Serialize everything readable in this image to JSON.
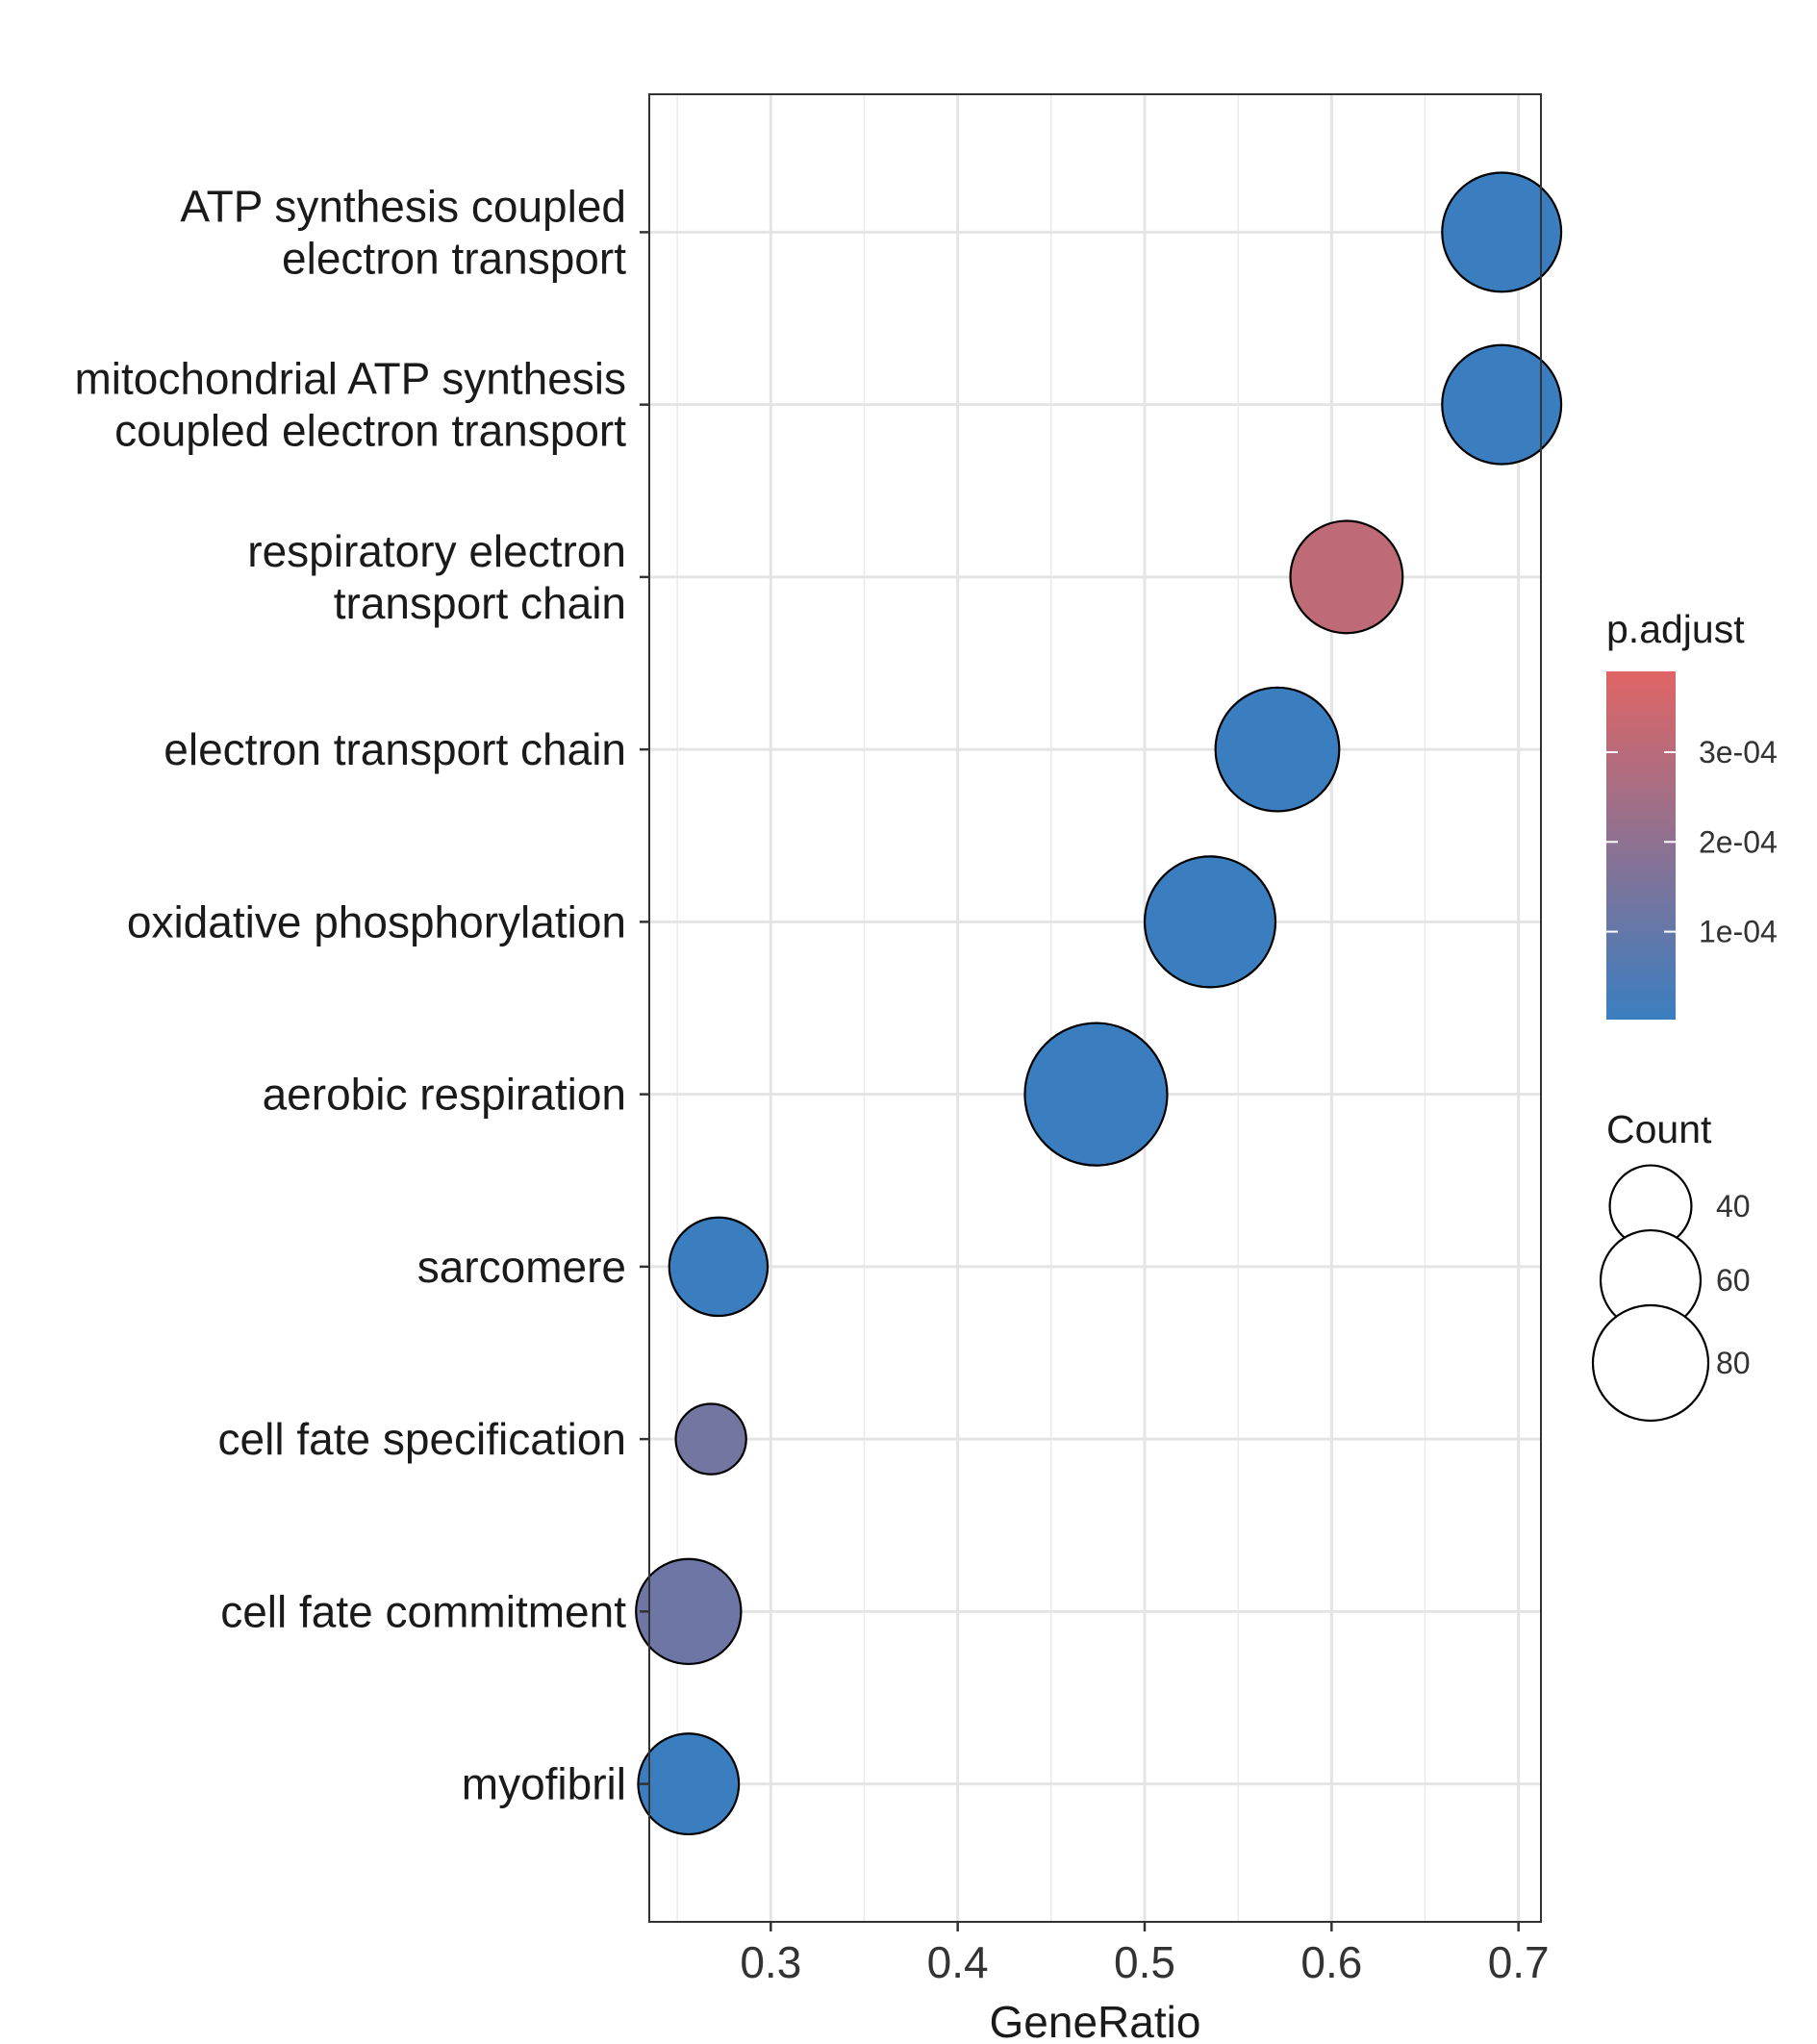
{
  "chart_data": {
    "type": "scatter",
    "xlabel": "GeneRatio",
    "ylabel": "",
    "xlim": [
      0.235,
      0.712
    ],
    "xticks": [
      0.3,
      0.4,
      0.5,
      0.6,
      0.7
    ],
    "xtick_labels": [
      "0.3",
      "0.4",
      "0.5",
      "0.6",
      "0.7"
    ],
    "grid": true,
    "categories": [
      [
        "ATP synthesis coupled",
        "electron transport"
      ],
      [
        "mitochondrial ATP synthesis",
        "coupled electron transport"
      ],
      [
        "respiratory electron",
        "transport chain"
      ],
      [
        "electron transport chain"
      ],
      [
        "oxidative phosphorylation"
      ],
      [
        "aerobic respiration"
      ],
      [
        "sarcomere"
      ],
      [
        "cell fate specification"
      ],
      [
        "cell fate commitment"
      ],
      [
        "myofibril"
      ]
    ],
    "points": [
      {
        "x": 0.691,
        "count": 63,
        "p_adjust": 2e-06
      },
      {
        "x": 0.691,
        "count": 63,
        "p_adjust": 2e-06
      },
      {
        "x": 0.608,
        "count": 56,
        "p_adjust": 0.00031
      },
      {
        "x": 0.571,
        "count": 68,
        "p_adjust": 2e-06
      },
      {
        "x": 0.535,
        "count": 76,
        "p_adjust": 2e-06
      },
      {
        "x": 0.474,
        "count": 90,
        "p_adjust": 2e-06
      },
      {
        "x": 0.272,
        "count": 43,
        "p_adjust": 2e-06
      },
      {
        "x": 0.268,
        "count": 22,
        "p_adjust": 0.0001325
      },
      {
        "x": 0.256,
        "count": 49,
        "p_adjust": 0.000121
      },
      {
        "x": 0.256,
        "count": 45,
        "p_adjust": 2e-06
      }
    ],
    "legend_position": "right",
    "color_legend": {
      "title": "p.adjust",
      "low_value_color": "#3a7ec0",
      "high_value_color": "#e06564",
      "range": [
        2e-06,
        0.00039
      ],
      "ticks": [
        0.0001,
        0.0002,
        0.0003
      ],
      "tick_labels": [
        "1e-04",
        "2e-04",
        "3e-04"
      ]
    },
    "size_legend": {
      "title": "Count",
      "values": [
        40,
        60,
        80
      ],
      "labels": [
        "40",
        "60",
        "80"
      ]
    }
  }
}
